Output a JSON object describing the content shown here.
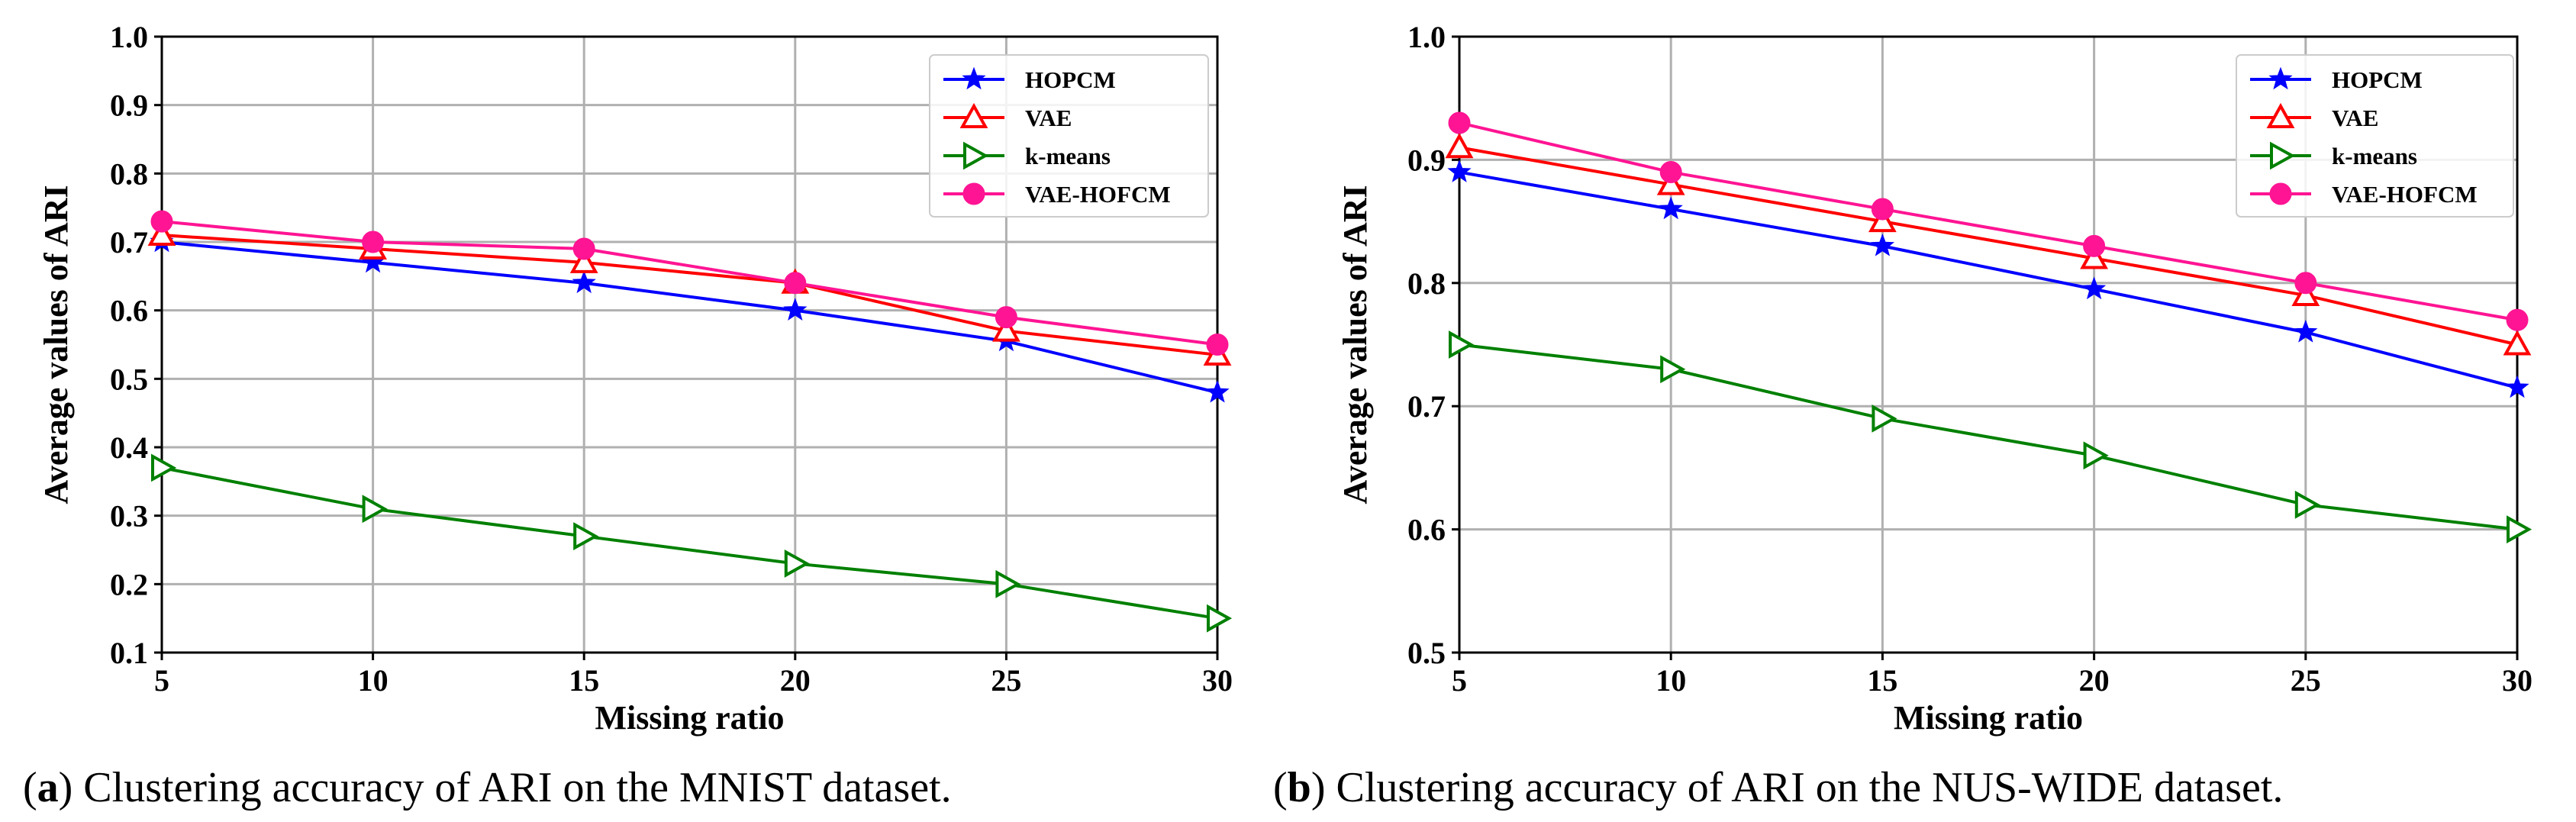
{
  "chart_data": [
    {
      "type": "line",
      "xlabel": "Missing ratio",
      "ylabel": "Average values of ARI",
      "x": [
        5,
        10,
        15,
        20,
        25,
        30
      ],
      "xticks": [
        "5",
        "10",
        "15",
        "20",
        "25",
        "30"
      ],
      "ylim": [
        0.1,
        1.0
      ],
      "yticks": [
        "0.1",
        "0.2",
        "0.3",
        "0.4",
        "0.5",
        "0.6",
        "0.7",
        "0.8",
        "0.9",
        "1.0"
      ],
      "ytick_values": [
        0.1,
        0.2,
        0.3,
        0.4,
        0.5,
        0.6,
        0.7,
        0.8,
        0.9,
        1.0
      ],
      "grid": true,
      "legend_position": "top-right",
      "caption_label": "a",
      "caption_text": "Clustering accuracy of ARI on the MNIST dataset.",
      "series": [
        {
          "name": "HOPCM",
          "color": "#0000ff",
          "marker": "star",
          "values": [
            0.7,
            0.67,
            0.64,
            0.6,
            0.555,
            0.48
          ]
        },
        {
          "name": "VAE",
          "color": "#ff0000",
          "marker": "triangle-up",
          "values": [
            0.71,
            0.69,
            0.67,
            0.64,
            0.57,
            0.535
          ]
        },
        {
          "name": "k-means",
          "color": "#008000",
          "marker": "triangle-right",
          "values": [
            0.37,
            0.31,
            0.27,
            0.23,
            0.2,
            0.15
          ]
        },
        {
          "name": "VAE-HOFCM",
          "color": "#ff1493",
          "marker": "circle",
          "values": [
            0.73,
            0.7,
            0.69,
            0.64,
            0.59,
            0.55
          ]
        }
      ]
    },
    {
      "type": "line",
      "xlabel": "Missing ratio",
      "ylabel": "Average values of ARI",
      "x": [
        5,
        10,
        15,
        20,
        25,
        30
      ],
      "xticks": [
        "5",
        "10",
        "15",
        "20",
        "25",
        "30"
      ],
      "ylim": [
        0.5,
        1.0
      ],
      "yticks": [
        "0.5",
        "0.6",
        "0.7",
        "0.8",
        "0.9",
        "1.0"
      ],
      "ytick_values": [
        0.5,
        0.6,
        0.7,
        0.8,
        0.9,
        1.0
      ],
      "grid": true,
      "legend_position": "top-right",
      "caption_label": "b",
      "caption_text": "Clustering accuracy of ARI on the NUS-WIDE dataset.",
      "series": [
        {
          "name": "HOPCM",
          "color": "#0000ff",
          "marker": "star",
          "values": [
            0.89,
            0.86,
            0.83,
            0.795,
            0.76,
            0.715
          ]
        },
        {
          "name": "VAE",
          "color": "#ff0000",
          "marker": "triangle-up",
          "values": [
            0.91,
            0.88,
            0.85,
            0.82,
            0.79,
            0.75
          ]
        },
        {
          "name": "k-means",
          "color": "#008000",
          "marker": "triangle-right",
          "values": [
            0.75,
            0.73,
            0.69,
            0.66,
            0.62,
            0.6
          ]
        },
        {
          "name": "VAE-HOFCM",
          "color": "#ff1493",
          "marker": "circle",
          "values": [
            0.93,
            0.89,
            0.86,
            0.83,
            0.8,
            0.77
          ]
        }
      ]
    }
  ]
}
